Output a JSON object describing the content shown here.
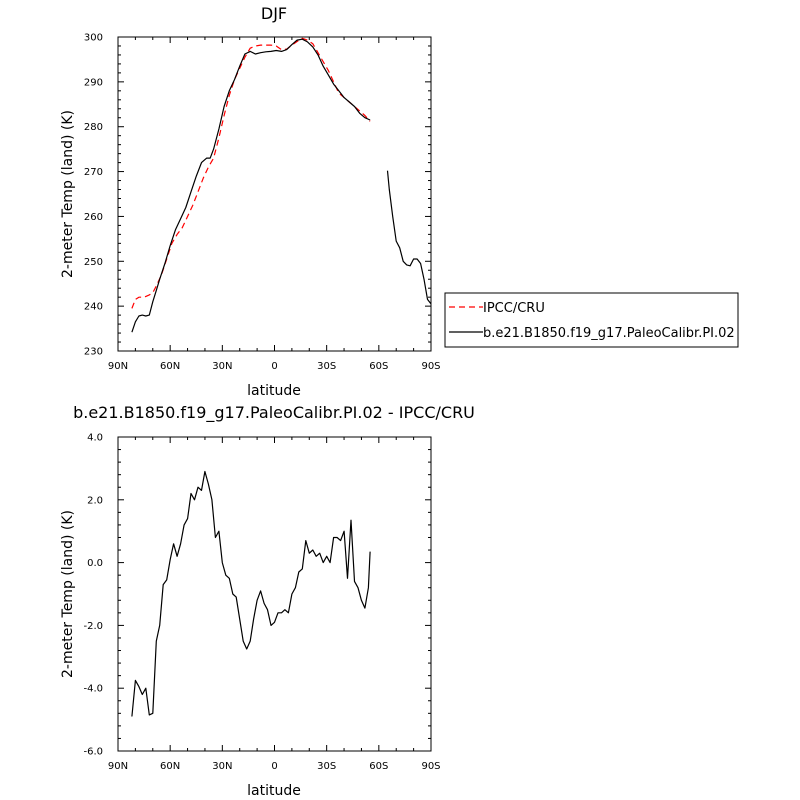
{
  "chart_data": [
    {
      "type": "line",
      "title": "DJF",
      "xlabel": "latitude",
      "ylabel": "2-meter Temp (land) (K)",
      "xlim": [
        90,
        -90
      ],
      "ylim": [
        230,
        300
      ],
      "xticks": [
        90,
        60,
        30,
        0,
        -30,
        -60,
        -90
      ],
      "xtick_labels": [
        "90N",
        "60N",
        "30N",
        "0",
        "30S",
        "60S",
        "90S"
      ],
      "yticks": [
        230,
        240,
        250,
        260,
        270,
        280,
        290,
        300
      ],
      "ytick_labels": [
        "230",
        "240",
        "250",
        "260",
        "270",
        "280",
        "290",
        "300"
      ],
      "legend": "outside-right",
      "series": [
        {
          "name": "IPCC/CRU",
          "color": "#ff0000",
          "dash": "dashed",
          "x": [
            82,
            80,
            78,
            75,
            72,
            70,
            68,
            65,
            62,
            59,
            56,
            53,
            50,
            47,
            44,
            41,
            38,
            35,
            32,
            29,
            26,
            23,
            20,
            17,
            14,
            11,
            8,
            5,
            2,
            -1,
            -4,
            -7,
            -10,
            -13,
            -16,
            -19,
            -22,
            -25,
            -28,
            -31,
            -34,
            -37,
            -40,
            -43,
            -46,
            -49,
            -52,
            -55
          ],
          "y": [
            239.5,
            241.5,
            242,
            242,
            242.5,
            243,
            244.5,
            247,
            250.5,
            254,
            256,
            257.5,
            260,
            262.5,
            265.5,
            268.5,
            271,
            273,
            277.5,
            282.5,
            287,
            290.5,
            293,
            295.5,
            297.5,
            298,
            298.2,
            298.2,
            298.2,
            298,
            297.2,
            297.3,
            298.2,
            299,
            299.7,
            299.3,
            298.5,
            296.5,
            294.5,
            292.5,
            290,
            287.5,
            286.5,
            285.5,
            284.5,
            283.5,
            282.5,
            281.2
          ]
        },
        {
          "name": "b.e21.B1850.f19_g17.PaleoCalibr.PI.02",
          "color": "#000000",
          "dash": "solid",
          "segments": [
            {
              "x": [
                82,
                80,
                78,
                76,
                74,
                72,
                70,
                68,
                66,
                63,
                60,
                57,
                54,
                51,
                48,
                45,
                42,
                39,
                37,
                35,
                32,
                29,
                26,
                23,
                20,
                17,
                14,
                11,
                8,
                5,
                2,
                -1,
                -4,
                -7,
                -10,
                -13,
                -16,
                -19,
                -22,
                -25,
                -28,
                -31,
                -34,
                -37,
                -40,
                -43,
                -46,
                -49,
                -52,
                -55
              ],
              "y": [
                234.2,
                236.5,
                237.8,
                238,
                237.8,
                238,
                241,
                243.5,
                246,
                249.5,
                253.5,
                257,
                259.5,
                262,
                265.5,
                269,
                272,
                273,
                273,
                275,
                279.5,
                284.5,
                288,
                290.5,
                293.5,
                296.2,
                296.8,
                296.2,
                296.5,
                296.7,
                296.8,
                297,
                296.8,
                297.2,
                298.3,
                299.3,
                299.5,
                298.9,
                297.8,
                296,
                293.5,
                291.5,
                289.5,
                288,
                286.5,
                285.5,
                284.5,
                283,
                282,
                281.5
              ]
            },
            {
              "x": [
                -65,
                -66,
                -68,
                -70,
                -72,
                -74,
                -76,
                -78,
                -80,
                -82,
                -84,
                -86,
                -88,
                -90
              ],
              "y": [
                270.2,
                266,
                260,
                254.5,
                253,
                250,
                249.2,
                249,
                250.5,
                250.5,
                249.5,
                246,
                241.5,
                240.5
              ]
            }
          ]
        }
      ]
    },
    {
      "type": "line",
      "title": "b.e21.B1850.f19_g17.PaleoCalibr.PI.02 - IPCC/CRU",
      "xlabel": "latitude",
      "ylabel": "2-meter Temp (land) (K)",
      "xlim": [
        90,
        -90
      ],
      "ylim": [
        -6,
        4
      ],
      "xticks": [
        90,
        60,
        30,
        0,
        -30,
        -60,
        -90
      ],
      "xtick_labels": [
        "90N",
        "60N",
        "30N",
        "0",
        "30S",
        "60S",
        "90S"
      ],
      "yticks": [
        -6,
        -4,
        -2,
        0,
        2,
        4
      ],
      "ytick_labels": [
        "-6.0",
        "-4.0",
        "-2.0",
        "0.0",
        "2.0",
        "4.0"
      ],
      "series": [
        {
          "color": "#000000",
          "x": [
            82,
            80,
            78,
            76,
            74,
            72,
            70,
            68,
            66,
            64,
            62,
            60,
            58,
            56,
            54,
            52,
            50,
            48,
            46,
            44,
            42,
            40,
            38,
            36,
            34,
            32,
            30,
            28,
            26,
            24,
            22,
            20,
            18,
            16,
            14,
            12,
            10,
            8,
            6,
            4,
            2,
            0,
            -2,
            -4,
            -6,
            -8,
            -10,
            -12,
            -14,
            -16,
            -18,
            -20,
            -22,
            -24,
            -26,
            -28,
            -30,
            -32,
            -34,
            -36,
            -38,
            -40,
            -42,
            -44,
            -46,
            -48,
            -50,
            -52,
            -54,
            -55
          ],
          "y": [
            -4.9,
            -3.75,
            -3.95,
            -4.2,
            -4.0,
            -4.85,
            -4.8,
            -2.5,
            -2.0,
            -0.7,
            -0.55,
            0.1,
            0.6,
            0.2,
            0.6,
            1.2,
            1.4,
            2.2,
            2.0,
            2.4,
            2.3,
            2.9,
            2.5,
            2.0,
            0.8,
            1.0,
            0.0,
            -0.4,
            -0.5,
            -1.0,
            -1.1,
            -1.8,
            -2.5,
            -2.75,
            -2.5,
            -1.8,
            -1.2,
            -0.9,
            -1.3,
            -1.5,
            -2.0,
            -1.9,
            -1.6,
            -1.6,
            -1.5,
            -1.6,
            -1.0,
            -0.8,
            -0.3,
            -0.2,
            0.7,
            0.3,
            0.4,
            0.2,
            0.3,
            0.0,
            0.2,
            0.0,
            0.8,
            0.8,
            0.7,
            1.0,
            -0.5,
            1.35,
            -0.6,
            -0.8,
            -1.2,
            -1.45,
            -0.8,
            0.35
          ]
        }
      ]
    }
  ],
  "legend": {
    "items": [
      {
        "label": "IPCC/CRU",
        "color": "#ff0000",
        "dash": "dashed"
      },
      {
        "label": "b.e21.B1850.f19_g17.PaleoCalibr.PI.02",
        "color": "#000000",
        "dash": "solid"
      }
    ]
  }
}
